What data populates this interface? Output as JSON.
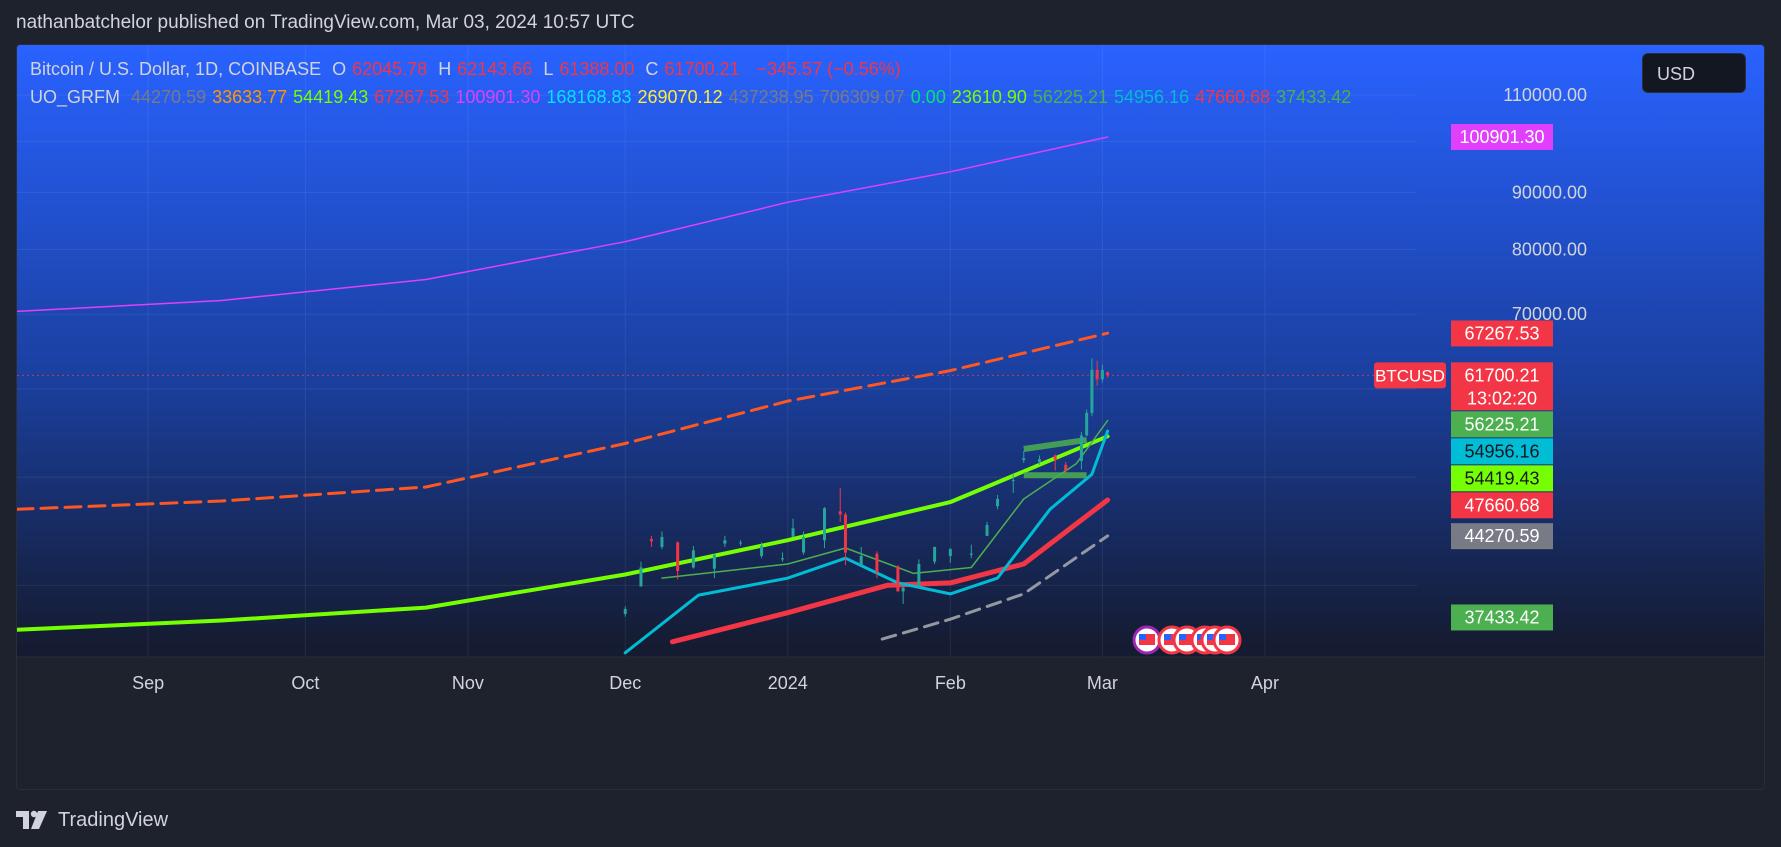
{
  "header": {
    "published_by": "nathanbatchelor published on TradingView.com, Mar 03, 2024 10:57 UTC"
  },
  "legend": {
    "symbol": "Bitcoin / U.S. Dollar, 1D, COINBASE",
    "o_label": "O",
    "o_value": "62045.78",
    "h_label": "H",
    "h_value": "62143.66",
    "l_label": "L",
    "l_value": "61388.00",
    "c_label": "C",
    "c_value": "61700.21",
    "change": "−345.57 (−0.56%)",
    "indicator": "UO_GRFM",
    "indicator_values": [
      {
        "v": "44270.59",
        "color": "#787b86"
      },
      {
        "v": "33633.77",
        "color": "#ff9800"
      },
      {
        "v": "54419.43",
        "color": "#76ff03"
      },
      {
        "v": "67267.53",
        "color": "#f23645"
      },
      {
        "v": "100901.30",
        "color": "#e040fb"
      },
      {
        "v": "168168.83",
        "color": "#00e5ff"
      },
      {
        "v": "269070.12",
        "color": "#ffeb3b"
      },
      {
        "v": "437238.95",
        "color": "#787b86"
      },
      {
        "v": "706309.07",
        "color": "#787b86"
      },
      {
        "v": "0.00",
        "color": "#00e676"
      },
      {
        "v": "23610.90",
        "color": "#76ff03"
      },
      {
        "v": "56225.21",
        "color": "#4caf50"
      },
      {
        "v": "54956.16",
        "color": "#00bcd4"
      },
      {
        "v": "47660.68",
        "color": "#f23645"
      },
      {
        "v": "37433.42",
        "color": "#4caf50"
      }
    ]
  },
  "currency_button": "USD",
  "footer": {
    "brand": "TradingView"
  },
  "chart_data": {
    "type": "line",
    "title": "Bitcoin / U.S. Dollar, 1D, COINBASE",
    "y_axis": {
      "scale": "log",
      "ticks": [
        "110000.00",
        "90000.00",
        "80000.00",
        "70000.00"
      ],
      "tick_values": [
        110000,
        90000,
        80000,
        70000
      ],
      "range": [
        34500,
        122000
      ]
    },
    "x_axis": {
      "ticks": [
        "Sep",
        "Oct",
        "Nov",
        "Dec",
        "2024",
        "Feb",
        "Mar",
        "Apr"
      ],
      "tick_dates": [
        "2023-09-01",
        "2023-10-01",
        "2023-11-01",
        "2023-12-01",
        "2024-01-01",
        "2024-02-01",
        "2024-03-01",
        "2024-04-01"
      ],
      "range": [
        "2023-08-07",
        "2024-04-30"
      ]
    },
    "price_labels": [
      {
        "text": "100901.30",
        "value": 100901.3,
        "bg": "#e040fb",
        "color": "#ffffff"
      },
      {
        "text": "67267.53",
        "value": 67267.53,
        "bg": "#f23645",
        "color": "#ffffff"
      },
      {
        "text": "61700.21",
        "value": 61700.21,
        "bg": "#f23645",
        "color": "#ffffff",
        "sub": "13:02:20",
        "tag": "BTCUSD"
      },
      {
        "text": "56225.21",
        "value": 56225.21,
        "bg": "#4caf50",
        "color": "#ffffff"
      },
      {
        "text": "54956.16",
        "value": 54956.16,
        "bg": "#00bcd4",
        "color": "#131722"
      },
      {
        "text": "54419.43",
        "value": 54419.43,
        "bg": "#76ff03",
        "color": "#131722"
      },
      {
        "text": "47660.68",
        "value": 47660.68,
        "bg": "#f23645",
        "color": "#ffffff"
      },
      {
        "text": "44270.59",
        "value": 44270.59,
        "bg": "#787b86",
        "color": "#ffffff"
      },
      {
        "text": "37433.42",
        "value": 37433.42,
        "bg": "#4caf50",
        "color": "#ffffff"
      }
    ],
    "series": [
      {
        "name": "magenta",
        "color": "#e040fb",
        "width": 1.5,
        "dash": "",
        "points": [
          [
            "2023-08-07",
            70400
          ],
          [
            "2023-09-15",
            72000
          ],
          [
            "2023-10-24",
            75200
          ],
          [
            "2023-12-01",
            81300
          ],
          [
            "2024-01-01",
            88200
          ],
          [
            "2024-02-01",
            93900
          ],
          [
            "2024-03-02",
            100900
          ]
        ]
      },
      {
        "name": "red-dashed",
        "color": "#ff5722",
        "width": 3,
        "dash": "16,8",
        "points": [
          [
            "2023-08-07",
            46800
          ],
          [
            "2023-09-15",
            47600
          ],
          [
            "2023-10-24",
            49000
          ],
          [
            "2023-12-01",
            53600
          ],
          [
            "2024-01-01",
            58500
          ],
          [
            "2024-02-01",
            62300
          ],
          [
            "2024-03-02",
            67300
          ]
        ]
      },
      {
        "name": "lime",
        "color": "#76ff03",
        "width": 4,
        "dash": "",
        "points": [
          [
            "2023-08-07",
            36500
          ],
          [
            "2023-09-15",
            37200
          ],
          [
            "2023-10-24",
            38200
          ],
          [
            "2023-12-01",
            40900
          ],
          [
            "2024-01-01",
            43900
          ],
          [
            "2024-02-01",
            47500
          ],
          [
            "2024-03-02",
            54400
          ]
        ]
      },
      {
        "name": "red-thick",
        "color": "#f23645",
        "width": 5,
        "dash": "",
        "points": [
          [
            "2023-12-10",
            35600
          ],
          [
            "2024-01-01",
            37800
          ],
          [
            "2024-01-20",
            40000
          ],
          [
            "2024-02-01",
            40200
          ],
          [
            "2024-02-15",
            41800
          ],
          [
            "2024-03-02",
            47700
          ]
        ]
      },
      {
        "name": "gray-dashed",
        "color": "#9598a1",
        "width": 3,
        "dash": "14,8",
        "points": [
          [
            "2024-01-19",
            35800
          ],
          [
            "2024-02-01",
            37300
          ],
          [
            "2024-02-15",
            39300
          ],
          [
            "2024-03-02",
            44300
          ]
        ]
      },
      {
        "name": "cyan",
        "color": "#00bcd4",
        "width": 3,
        "dash": "",
        "points": [
          [
            "2023-12-01",
            34800
          ],
          [
            "2023-12-15",
            39200
          ],
          [
            "2024-01-01",
            40600
          ],
          [
            "2024-01-12",
            42300
          ],
          [
            "2024-01-22",
            40200
          ],
          [
            "2024-02-01",
            39300
          ],
          [
            "2024-02-10",
            40600
          ],
          [
            "2024-02-20",
            46800
          ],
          [
            "2024-02-28",
            50300
          ],
          [
            "2024-03-02",
            55000
          ]
        ]
      },
      {
        "name": "green-thin",
        "color": "#4caf50",
        "width": 1.5,
        "dash": "",
        "points": [
          [
            "2023-12-08",
            40600
          ],
          [
            "2024-01-01",
            41800
          ],
          [
            "2024-01-12",
            43200
          ],
          [
            "2024-01-25",
            41000
          ],
          [
            "2024-02-05",
            41500
          ],
          [
            "2024-02-15",
            47800
          ],
          [
            "2024-02-25",
            51400
          ],
          [
            "2024-03-02",
            56200
          ]
        ]
      }
    ],
    "price_line": {
      "value": 61700.21,
      "color": "#f23645"
    },
    "channel": {
      "color": "#4caf50",
      "top": [
        [
          "2024-02-15",
          53000
        ],
        [
          "2024-02-27",
          54000
        ]
      ],
      "bottom": [
        [
          "2024-02-15",
          50200
        ],
        [
          "2024-02-27",
          50200
        ]
      ]
    },
    "candles": [
      [
        "2023-12-01",
        37700,
        38300,
        37500,
        38100
      ],
      [
        "2023-12-04",
        39900,
        42000,
        39900,
        41500
      ],
      [
        "2023-12-06",
        44000,
        44300,
        43300,
        43800
      ],
      [
        "2023-12-08",
        43300,
        44700,
        43100,
        44200
      ],
      [
        "2023-12-11",
        43700,
        43800,
        40500,
        41200
      ],
      [
        "2023-12-14",
        41500,
        43400,
        41400,
        43000
      ],
      [
        "2023-12-18",
        41400,
        42700,
        40600,
        42600
      ],
      [
        "2023-12-20",
        43600,
        44300,
        43300,
        43900
      ],
      [
        "2023-12-23",
        43700,
        43900,
        43400,
        43700
      ],
      [
        "2023-12-27",
        42500,
        43700,
        42300,
        43400
      ],
      [
        "2023-12-31",
        42200,
        42800,
        42000,
        42300
      ],
      [
        "2024-01-02",
        44200,
        45900,
        44200,
        45000
      ],
      [
        "2024-01-04",
        42800,
        44700,
        42600,
        44200
      ],
      [
        "2024-01-08",
        43900,
        47000,
        43200,
        46900
      ],
      [
        "2024-01-11",
        46600,
        48900,
        45600,
        46300
      ],
      [
        "2024-01-12",
        46300,
        46500,
        41700,
        42800
      ],
      [
        "2024-01-15",
        41700,
        43300,
        41700,
        42500
      ],
      [
        "2024-01-18",
        42700,
        42900,
        40600,
        41100
      ],
      [
        "2024-01-22",
        41600,
        41700,
        39500,
        39500
      ],
      [
        "2024-01-23",
        39500,
        40100,
        38500,
        39800
      ],
      [
        "2024-01-26",
        40000,
        42200,
        39800,
        41800
      ],
      [
        "2024-01-29",
        42000,
        43300,
        41800,
        43300
      ],
      [
        "2024-02-01",
        42500,
        43200,
        41900,
        43100
      ],
      [
        "2024-02-05",
        42600,
        43500,
        42300,
        42700
      ],
      [
        "2024-02-08",
        44300,
        45600,
        44300,
        45300
      ],
      [
        "2024-02-10",
        47100,
        48200,
        46800,
        47800
      ],
      [
        "2024-02-13",
        49700,
        50300,
        48400,
        49700
      ],
      [
        "2024-02-15",
        51800,
        52800,
        51500,
        52000
      ],
      [
        "2024-02-18",
        51600,
        52300,
        51300,
        51900
      ],
      [
        "2024-02-21",
        52300,
        52400,
        50700,
        51800
      ],
      [
        "2024-02-23",
        51300,
        51600,
        50500,
        50700
      ],
      [
        "2024-02-26",
        51700,
        54900,
        50800,
        54500
      ],
      [
        "2024-02-27",
        54500,
        57500,
        54400,
        57100
      ],
      [
        "2024-02-28",
        57100,
        63900,
        56700,
        62400
      ],
      [
        "2024-02-29",
        62400,
        63600,
        60400,
        61200
      ],
      [
        "2024-03-01",
        61200,
        63100,
        60800,
        62400
      ],
      [
        "2024-03-02",
        62100,
        62200,
        61400,
        61700
      ]
    ]
  }
}
